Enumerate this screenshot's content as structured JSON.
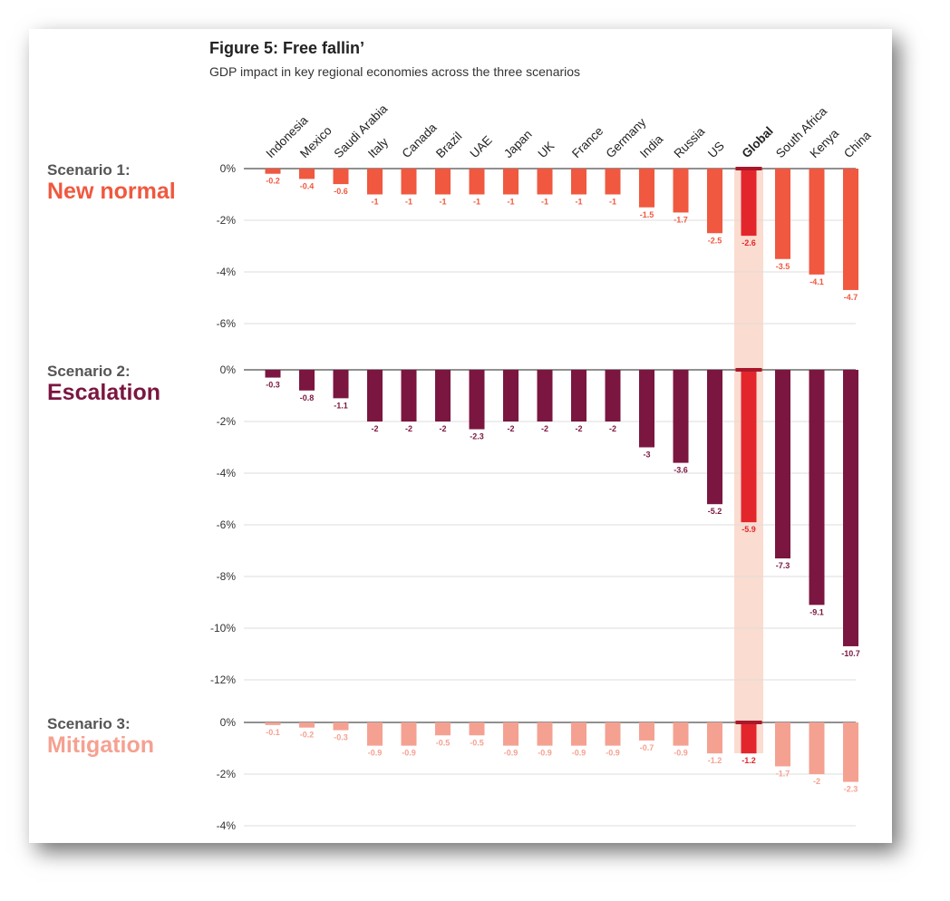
{
  "chart_data": {
    "type": "bar",
    "title": "Figure 5: Free fallin’",
    "subtitle": "GDP impact in key regional economies across the three scenarios",
    "categories": [
      "Indonesia",
      "Mexico",
      "Saudi Arabia",
      "Italy",
      "Canada",
      "Brazil",
      "UAE",
      "Japan",
      "UK",
      "France",
      "Germany",
      "India",
      "Russia",
      "US",
      "Global",
      "South Africa",
      "Kenya",
      "China"
    ],
    "highlight_category": "Global",
    "highlight_color": "#e3262b",
    "highlight_band_color": "#fbdcd0",
    "panels": [
      {
        "scenario_label": "Scenario 1:",
        "scenario_name": "New normal",
        "color": "#f0583f",
        "ylim": [
          -6,
          0
        ],
        "yticks": [
          0,
          -2,
          -4,
          -6
        ],
        "tick_labels": [
          "0%",
          "-2%",
          "-4%",
          "-6%"
        ],
        "values": [
          -0.2,
          -0.4,
          -0.6,
          -1,
          -1,
          -1,
          -1,
          -1,
          -1,
          -1,
          -1,
          -1.5,
          -1.7,
          -2.5,
          -2.6,
          -3.5,
          -4.1,
          -4.7
        ],
        "value_labels": [
          "-0.2",
          "-0.4",
          "-0.6",
          "-1",
          "-1",
          "-1",
          "-1",
          "-1",
          "-1",
          "-1",
          "-1",
          "-1.5",
          "-1.7",
          "-2.5",
          "-2.6",
          "-3.5",
          "-4.1",
          "-4.7"
        ]
      },
      {
        "scenario_label": "Scenario 2:",
        "scenario_name": "Escalation",
        "color": "#7b1640",
        "ylim": [
          -12,
          0
        ],
        "yticks": [
          0,
          -2,
          -4,
          -6,
          -8,
          -10,
          -12
        ],
        "tick_labels": [
          "0%",
          "-2%",
          "-4%",
          "-6%",
          "-8%",
          "-10%",
          "-12%"
        ],
        "values": [
          -0.3,
          -0.8,
          -1.1,
          -2,
          -2,
          -2,
          -2.3,
          -2,
          -2,
          -2,
          -2,
          -3,
          -3.6,
          -5.2,
          -5.9,
          -7.3,
          -9.1,
          -10.7
        ],
        "value_labels": [
          "-0.3",
          "-0.8",
          "-1.1",
          "-2",
          "-2",
          "-2",
          "-2.3",
          "-2",
          "-2",
          "-2",
          "-2",
          "-3",
          "-3.6",
          "-5.2",
          "-5.9",
          "-7.3",
          "-9.1",
          "-10.7"
        ]
      },
      {
        "scenario_label": "Scenario 3:",
        "scenario_name": "Mitigation",
        "color": "#f5a191",
        "ylim": [
          -4,
          0
        ],
        "yticks": [
          0,
          -2,
          -4
        ],
        "tick_labels": [
          "0%",
          "-2%",
          "-4%"
        ],
        "values": [
          -0.1,
          -0.2,
          -0.3,
          -0.9,
          -0.9,
          -0.5,
          -0.5,
          -0.9,
          -0.9,
          -0.9,
          -0.9,
          -0.7,
          -0.9,
          -1.2,
          -1.2,
          -1.7,
          -2,
          -2.3
        ],
        "value_labels": [
          "-0.1",
          "-0.2",
          "-0.3",
          "-0.9",
          "-0.9",
          "-0.5",
          "-0.5",
          "-0.9",
          "-0.9",
          "-0.9",
          "-0.9",
          "-0.7",
          "-0.9",
          "-1.2",
          "-1.2",
          "-1.7",
          "-2",
          "-2.3"
        ]
      }
    ]
  }
}
